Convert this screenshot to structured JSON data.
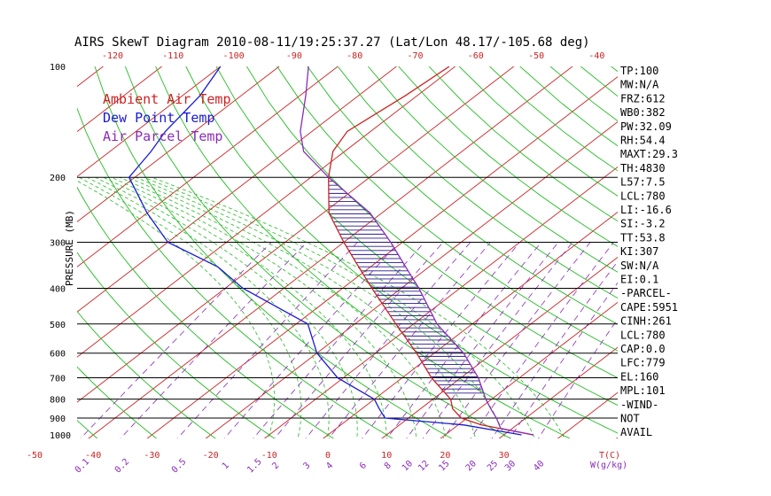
{
  "chart_data": {
    "type": "line",
    "title": "AIRS SkewT Diagram 2010-08-11/19:25:37.27 (Lat/Lon 48.17/-105.68 deg)",
    "ylabel": "PRESSURE (MB)",
    "xlabel": "T(C)",
    "mixing_ratio_label": "W(g/kg)",
    "y_scale": "log",
    "ylim": [
      1000,
      100
    ],
    "pressure_ticks": [
      "100",
      "200",
      "300",
      "400",
      "500",
      "600",
      "700",
      "800",
      "900",
      "1000"
    ],
    "bottom_temp_ticks": [
      "-50",
      "-40",
      "-30",
      "-20",
      "-10",
      "0",
      "10",
      "20",
      "30"
    ],
    "top_temp_ticks": [
      "-120",
      "-110",
      "-100",
      "-90",
      "-80",
      "-70",
      "-60",
      "-50",
      "-40"
    ],
    "mixing_ratio_ticks": [
      "0.1",
      "0.2",
      "0.5",
      "1",
      "1.5",
      "2",
      "3",
      "4",
      "6",
      "8",
      "10",
      "12",
      "15",
      "20",
      "25",
      "30",
      "40"
    ],
    "legend": [
      {
        "label": "Ambient Air Temp",
        "color": "#cc2222"
      },
      {
        "label": "Dew Point Temp",
        "color": "#1a1ad4"
      },
      {
        "label": "Air Parcel Temp",
        "color": "#8a2bb8"
      }
    ],
    "series": [
      {
        "name": "Ambient Air Temp",
        "pressure": [
          1000,
          940,
          900,
          850,
          800,
          700,
          600,
          500,
          400,
          350,
          300,
          250,
          200,
          170,
          150,
          120,
          100
        ],
        "temp": [
          35,
          24,
          19,
          15.5,
          13,
          5,
          -3,
          -13,
          -25,
          -32,
          -40,
          -49,
          -57,
          -62,
          -64,
          -62,
          -61
        ]
      },
      {
        "name": "Dew Point Temp",
        "pressure": [
          1000,
          940,
          900,
          850,
          800,
          700,
          600,
          500,
          400,
          350,
          300,
          250,
          200,
          170,
          150,
          120,
          100
        ],
        "temp": [
          33,
          21,
          6,
          3,
          0,
          -11,
          -20,
          -28,
          -47,
          -56,
          -70,
          -80,
          -91,
          -93,
          -95,
          -97,
          -100
        ]
      },
      {
        "name": "Air Parcel Temp",
        "pressure": [
          1000,
          960,
          900,
          850,
          800,
          700,
          600,
          500,
          400,
          350,
          300,
          250,
          200,
          170,
          150,
          120,
          100
        ],
        "temp": [
          35,
          28,
          25,
          22,
          19,
          13,
          5,
          -6,
          -17,
          -24,
          -32,
          -42,
          -57,
          -67,
          -72,
          -79,
          -85
        ]
      }
    ],
    "grid": true,
    "legend_position": "top-left"
  },
  "indices": [
    "TP:100",
    "MW:N/A",
    "FRZ:612",
    "WB0:382",
    "PW:32.09",
    "RH:54.4",
    "MAXT:29.3",
    "TH:4830",
    "L57:7.5",
    "LCL:780",
    "LI:-16.6",
    "SI:-3.2",
    "TT:53.8",
    "KI:307",
    "SW:N/A",
    "EI:0.1",
    "-PARCEL-",
    "CAPE:5951",
    "CINH:261",
    "LCL:780",
    "CAP:0.0",
    "LFC:779",
    "EL:160",
    "MPL:101",
    "-WIND-",
    "NOT",
    "AVAIL"
  ],
  "colors": {
    "isotherm": "#cc2222",
    "dry_adiabat": "#22bb22",
    "moist_adiabat": "#22bb22",
    "mixing_ratio": "#8a2bb8",
    "hatch": "#2a1a8a"
  }
}
